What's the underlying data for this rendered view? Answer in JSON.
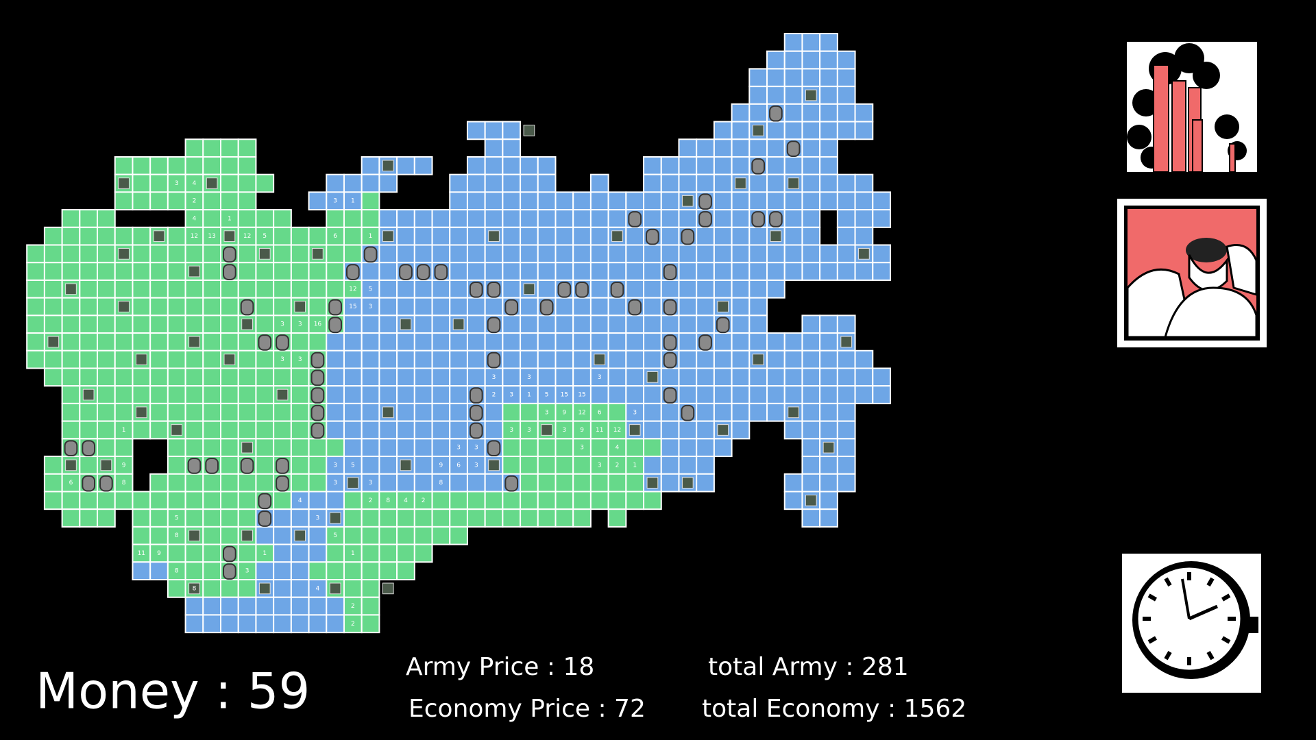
{
  "stats": {
    "money": "Money : 59",
    "army_price": "Army Price : 18",
    "economy_price": "Economy Price : 72",
    "total_army": "total Army : 281",
    "total_economy": "total Economy : 1562"
  },
  "map": {
    "cell_labels": [
      "3",
      "4",
      "2",
      "4",
      "1",
      "12",
      "13",
      "12",
      "5",
      "3",
      "1",
      "6",
      "1",
      "12",
      "5",
      "15",
      "3",
      "3",
      "3",
      "16",
      "3",
      "3",
      "3",
      "3",
      "3",
      "2",
      "3",
      "1",
      "5",
      "15",
      "15",
      "3",
      "9",
      "12",
      "6",
      "3",
      "3",
      "3",
      "3",
      "9",
      "11",
      "12",
      "3",
      "3",
      "3",
      "4",
      "3",
      "5",
      "9",
      "6",
      "3",
      "3",
      "2",
      "1",
      "3",
      "3",
      "8",
      "4",
      "2",
      "8",
      "4",
      "2",
      "3",
      "5",
      "1",
      "1",
      "11",
      "9",
      "3",
      "9",
      "8",
      "6",
      "1",
      "5",
      "8",
      "8",
      "8",
      "4",
      "2",
      "2"
    ]
  }
}
